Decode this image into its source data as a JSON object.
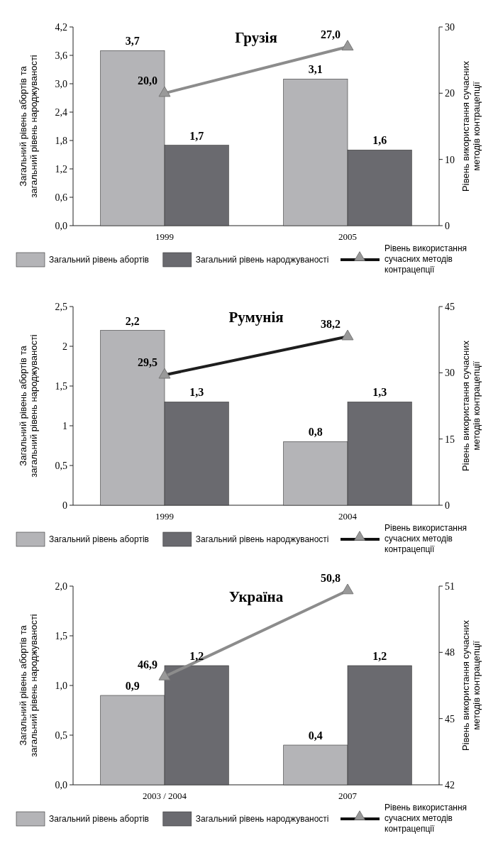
{
  "chart_data": [
    {
      "type": "bar",
      "title": "Грузія",
      "ylabel": "Загальний рівень абортів та загальний рівень народжуваності",
      "y2label": "Рівень використання сучасних методів контрацепції",
      "categories": [
        "1999",
        "2005"
      ],
      "ylim": [
        0,
        4.2
      ],
      "yticks": [
        {
          "value": 0,
          "label": "0,0"
        },
        {
          "value": 0.6,
          "label": "0,6"
        },
        {
          "value": 1.2,
          "label": "1,2"
        },
        {
          "value": 1.8,
          "label": "1,8"
        },
        {
          "value": 2.4,
          "label": "2,4"
        },
        {
          "value": 3,
          "label": "3,0"
        },
        {
          "value": 3.6,
          "label": "3,6"
        },
        {
          "value": 4.2,
          "label": "4,2"
        }
      ],
      "y2lim": [
        0,
        30
      ],
      "y2ticks": [
        0,
        10,
        20,
        30
      ],
      "legend": "bottom",
      "marker": "triangle",
      "series": [
        {
          "name": "Загальний рівень абортів",
          "color": "#b4b4b7",
          "values": [
            3.7,
            3.1
          ],
          "value_labels": [
            "3,7",
            "3,1"
          ]
        },
        {
          "name": "Загальний рівень народжуваності",
          "color": "#6a6a6f",
          "values": [
            1.7,
            1.6
          ],
          "value_labels": [
            "1,7",
            "1,6"
          ]
        },
        {
          "name": "Рівень використання сучасних методів контрацепції",
          "type": "line",
          "axis": "y2",
          "color": "#8c8c8c",
          "values": [
            20,
            27
          ],
          "value_labels": [
            "20,0",
            "27,0"
          ]
        }
      ]
    },
    {
      "type": "bar",
      "title": "Румунія",
      "ylabel": "Загальний рівень абортів та загальний рівень народжуваності",
      "y2label": "Рівень використання сучасних методів контрацепції",
      "categories": [
        "1999",
        "2004"
      ],
      "ylim": [
        0,
        2.5
      ],
      "yticks": [
        0,
        {
          "value": 0.5,
          "label": "0,5"
        },
        1,
        {
          "value": 1.5,
          "label": "1,5"
        },
        2,
        {
          "value": 2.5,
          "label": "2,5"
        }
      ],
      "y2lim": [
        0,
        45
      ],
      "y2ticks": [
        0,
        15,
        30,
        45
      ],
      "legend": "bottom",
      "marker": "triangle",
      "series": [
        {
          "name": "Загальний рівень абортів",
          "color": "#b4b4b7",
          "values": [
            2.2,
            0.8
          ],
          "value_labels": [
            "2,2",
            "0,8"
          ]
        },
        {
          "name": "Загальний рівень народжуваності",
          "color": "#6a6a6f",
          "values": [
            1.3,
            1.3
          ],
          "value_labels": [
            "1,3",
            "1,3"
          ]
        },
        {
          "name": "Рівень використання сучасних методів контрацепції",
          "type": "line",
          "axis": "y2",
          "color": "#1e1e1e",
          "values": [
            29.5,
            38.2
          ],
          "value_labels": [
            "29,5",
            "38,2"
          ]
        }
      ]
    },
    {
      "type": "bar",
      "title": "Україна",
      "ylabel": "Загальний рівень абортів та загальний рівень народжуваності",
      "y2label": "Рівень використання сучасних методів контрацепції",
      "categories": [
        "2003 / 2004",
        "2007"
      ],
      "ylim": [
        0,
        2
      ],
      "yticks": [
        {
          "value": 0,
          "label": "0,0"
        },
        {
          "value": 0.5,
          "label": "0,5"
        },
        {
          "value": 1,
          "label": "1,0"
        },
        {
          "value": 1.5,
          "label": "1,5"
        },
        {
          "value": 2,
          "label": "2,0"
        }
      ],
      "y2lim": [
        42,
        51
      ],
      "y2ticks": [
        42,
        45,
        48,
        51
      ],
      "legend": "bottom",
      "marker": "triangle",
      "series": [
        {
          "name": "Загальний рівень абортів",
          "color": "#b4b4b7",
          "values": [
            0.9,
            0.4
          ],
          "value_labels": [
            "0,9",
            "0,4"
          ]
        },
        {
          "name": "Загальний рівень народжуваності",
          "color": "#6a6a6f",
          "values": [
            1.2,
            1.2
          ],
          "value_labels": [
            "1,2",
            "1,2"
          ]
        },
        {
          "name": "Рівень використання сучасних методів контрацепції",
          "type": "line",
          "axis": "y2",
          "color": "#8c8c8c",
          "values": [
            46.9,
            50.8
          ],
          "value_labels": [
            "46,9",
            "50,8"
          ]
        }
      ]
    }
  ]
}
